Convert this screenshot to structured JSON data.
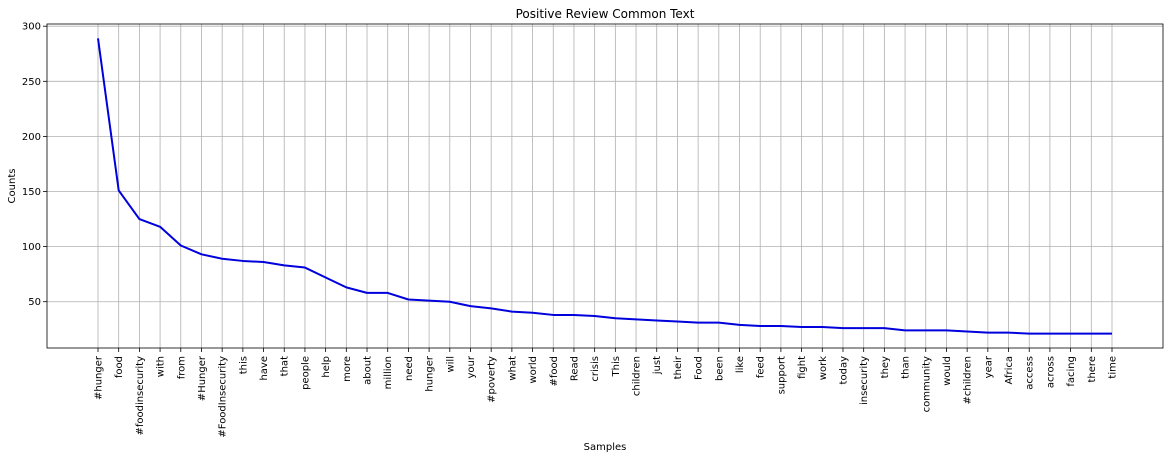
{
  "chart_data": {
    "type": "line",
    "title": "Positive Review Common Text",
    "xlabel": "Samples",
    "ylabel": "Counts",
    "grid": true,
    "ylim": [
      8,
      302
    ],
    "yticks": [
      50,
      100,
      150,
      200,
      250,
      300
    ],
    "line_color": "#0000dd",
    "categories": [
      "#hunger",
      "food",
      "#foodinsecurity",
      "with",
      "from",
      "#Hunger",
      "#FoodInsecurity",
      "this",
      "have",
      "that",
      "people",
      "help",
      "more",
      "about",
      "million",
      "need",
      "hunger",
      "will",
      "your",
      "#poverty",
      "what",
      "world",
      "#food",
      "Read",
      "crisis",
      "This",
      "children",
      "just",
      "their",
      "Food",
      "been",
      "like",
      "feed",
      "support",
      "fight",
      "work",
      "today",
      "insecurity",
      "they",
      "than",
      "community",
      "would",
      "#children",
      "year",
      "Africa",
      "access",
      "across",
      "facing",
      "there",
      "time"
    ],
    "series": [
      {
        "values": [
          289,
          151,
          125,
          118,
          101,
          93,
          89,
          87,
          86,
          83,
          81,
          72,
          63,
          58,
          58,
          52,
          51,
          50,
          46,
          44,
          41,
          40,
          38,
          38,
          37,
          35,
          34,
          33,
          32,
          31,
          31,
          29,
          28,
          28,
          27,
          27,
          26,
          26,
          26,
          24,
          24,
          24,
          23,
          22,
          22,
          21,
          21,
          21,
          21,
          21
        ]
      }
    ]
  }
}
